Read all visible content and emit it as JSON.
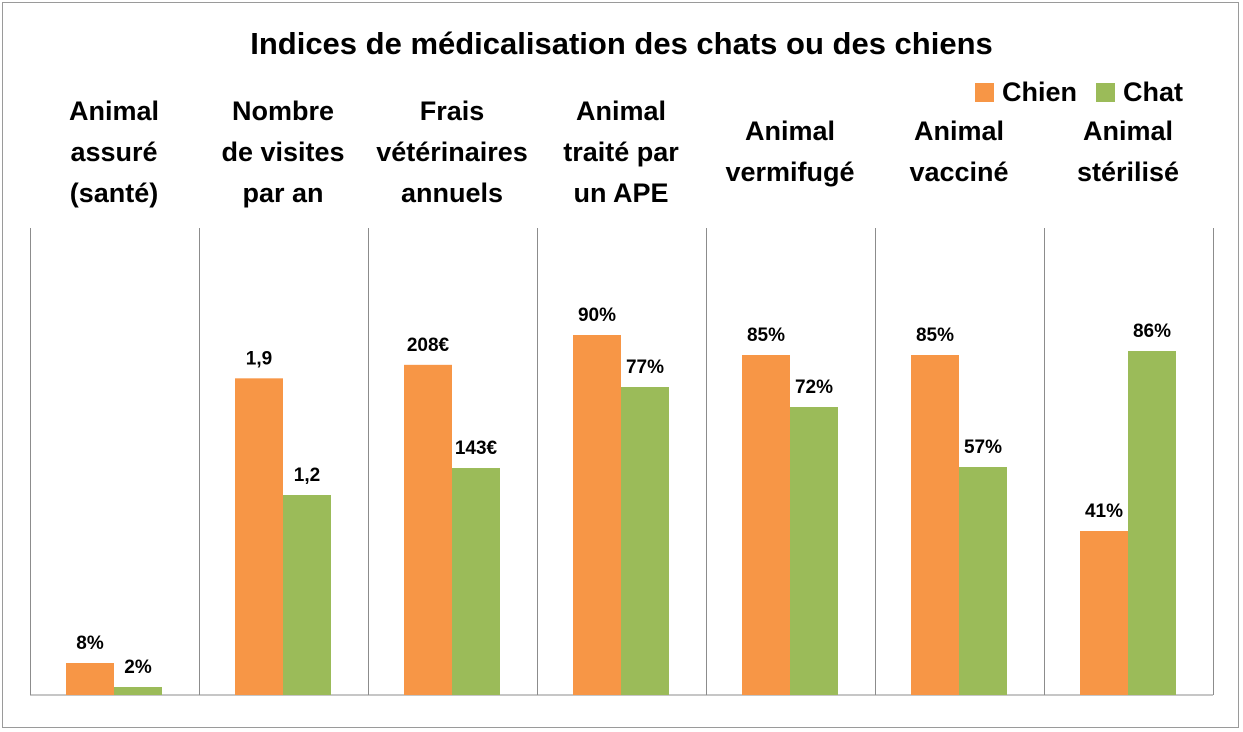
{
  "chart_data": {
    "type": "bar",
    "title": "Indices de médicalisation des chats ou des chiens",
    "legend_position": "top-right",
    "grid": false,
    "categories": [
      "Animal\nassuré\n(santé)",
      "Nombre\nde visites\npar an",
      "Frais\nvétérinaires\nannuels",
      "Animal\ntraité par\nun APE",
      "Animal\nvermifugé",
      "Animal\nvacciné",
      "Animal\nstérilisé"
    ],
    "series": [
      {
        "name": "Chien",
        "color": "#F79646",
        "values": [
          8,
          1.9,
          208,
          90,
          85,
          85,
          41
        ],
        "labels": [
          "8%",
          "1,9",
          "208€",
          "90%",
          "85%",
          "85%",
          "41%"
        ]
      },
      {
        "name": "Chat",
        "color": "#9BBB59",
        "values": [
          2,
          1.2,
          143,
          77,
          72,
          57,
          86
        ],
        "labels": [
          "2%",
          "1,2",
          "143€",
          "77%",
          "72%",
          "57%",
          "86%"
        ]
      }
    ],
    "category_max": [
      100,
      2.4,
      252,
      100,
      100,
      100,
      100
    ]
  }
}
